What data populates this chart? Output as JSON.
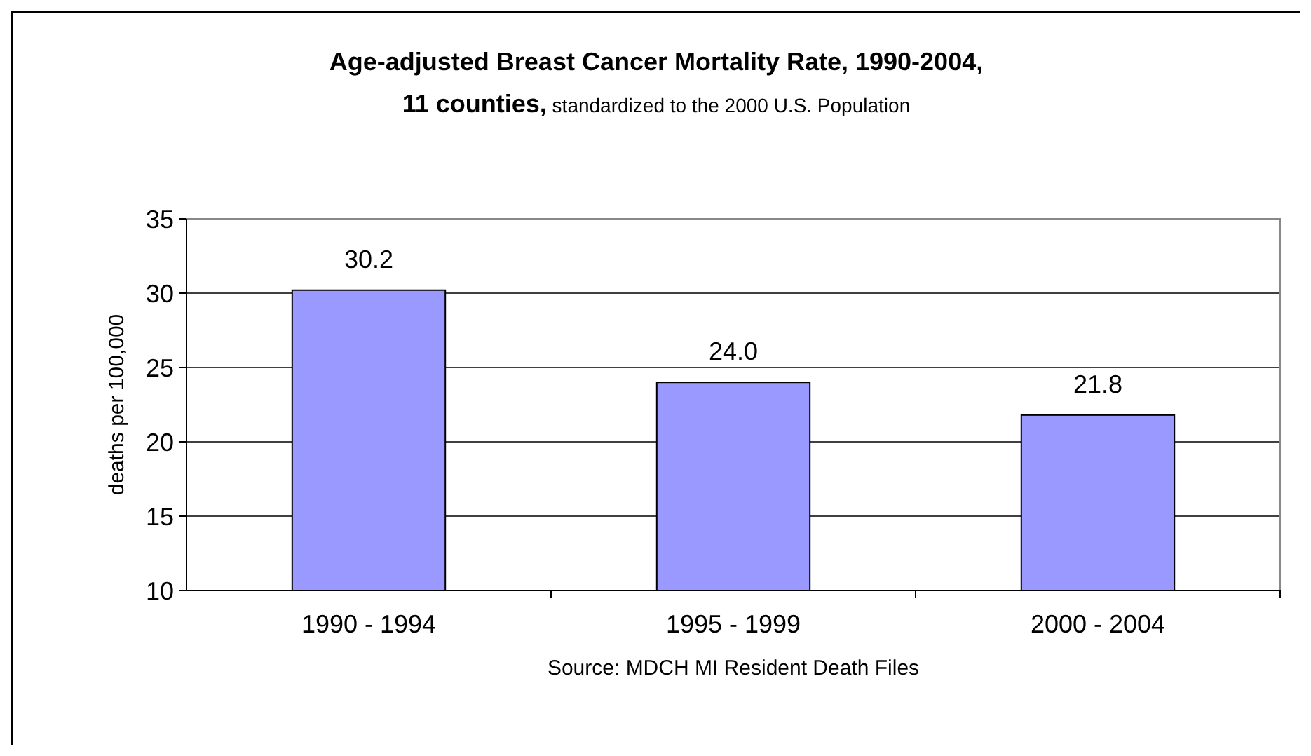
{
  "chart_data": {
    "type": "bar",
    "title": "Age-adjusted Breast Cancer Mortality Rate, 1990-2004, 11 counties,",
    "subtitle": "standardized to the 2000 U.S. Population",
    "ylabel": "deaths per 100,000",
    "categories": [
      "1990 - 1994",
      "1995 - 1999",
      "2000 - 2004"
    ],
    "values": [
      30.2,
      24.0,
      21.8
    ],
    "value_labels": [
      "30.2",
      "24.0",
      "21.8"
    ],
    "color": "#9999ff",
    "ylim": [
      10,
      35
    ],
    "yticks": [
      10,
      15,
      20,
      25,
      30,
      35
    ],
    "grid": "y",
    "annotations": [
      "Source: MDCH MI Resident Death Files"
    ]
  }
}
